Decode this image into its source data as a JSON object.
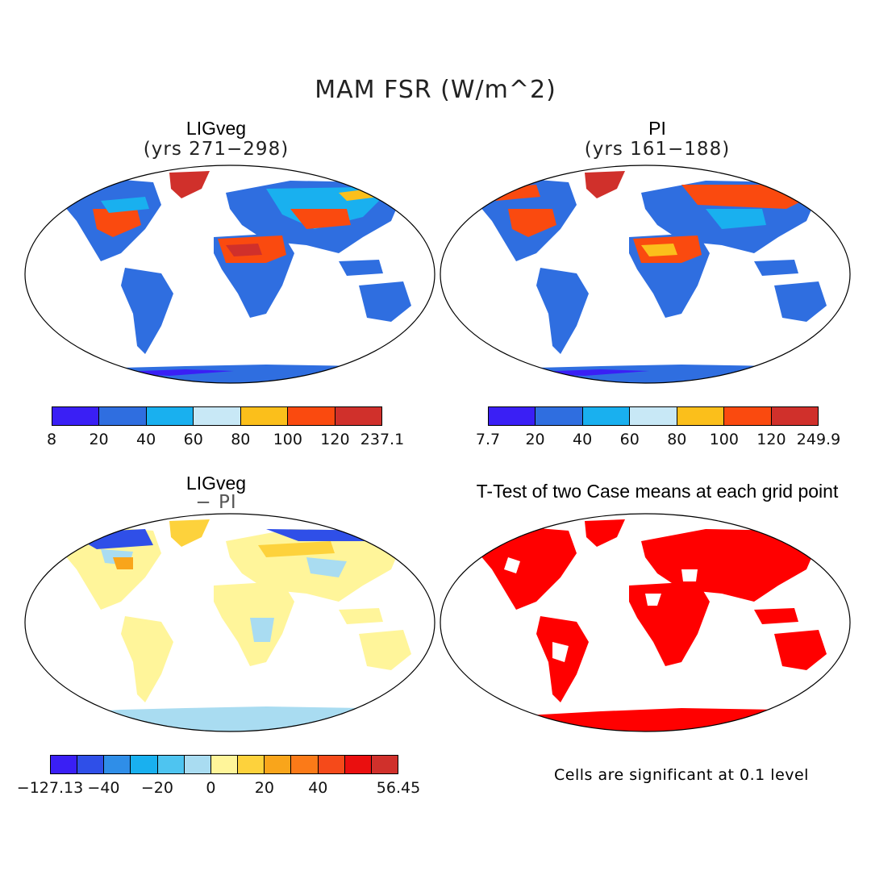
{
  "figure": {
    "title": "MAM FSR (W/m^2)"
  },
  "panels": [
    {
      "id": "ligveg",
      "title": "LIGveg",
      "subtitle": "(yrs 271−298)",
      "colorbar": {
        "labels": [
          "8",
          "20",
          "40",
          "60",
          "80",
          "100",
          "120",
          "237.1"
        ],
        "colors": [
          "#3a1ff5",
          "#2f6ee0",
          "#19b0ef",
          "#c8e8f6",
          "#fbbf1b",
          "#fa4a0f",
          "#d0302b"
        ]
      }
    },
    {
      "id": "pi",
      "title": "PI",
      "subtitle": "(yrs 161−188)",
      "colorbar": {
        "labels": [
          "7.7",
          "20",
          "40",
          "60",
          "80",
          "100",
          "120",
          "249.9"
        ],
        "colors": [
          "#3a1ff5",
          "#2f6ee0",
          "#19b0ef",
          "#c8e8f6",
          "#fbbf1b",
          "#fa4a0f",
          "#d0302b"
        ]
      }
    },
    {
      "id": "diff",
      "title": "LIGveg",
      "subtitle": "− PI",
      "colorbar": {
        "labels": [
          "−127.13",
          "−40",
          "−20",
          "0",
          "20",
          "40",
          "56.45"
        ],
        "colors": [
          "#3a1ff5",
          "#2f4fe8",
          "#2f8ee8",
          "#19b0ef",
          "#4ec4f0",
          "#a9dcf1",
          "#fff59a",
          "#fdd23c",
          "#f9a51b",
          "#fb7a18",
          "#f54a1a",
          "#ea0f0f",
          "#d0302b"
        ]
      }
    },
    {
      "id": "ttest",
      "title": "T-Test of two Case means at each grid point",
      "note": "Cells are significant at 0.1 level",
      "sig_color": "#ff0000"
    }
  ]
}
